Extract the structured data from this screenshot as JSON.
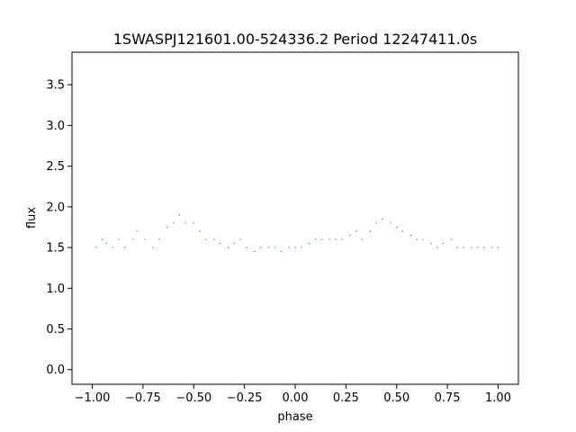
{
  "chart_data": {
    "type": "scatter",
    "title": "1SWASPJ121601.00-524336.2 Period 12247411.0s",
    "xlabel": "phase",
    "ylabel": "flux",
    "xlim": [
      -1.1,
      1.1
    ],
    "ylim": [
      -0.18,
      3.9
    ],
    "xticks": [
      -1.0,
      -0.75,
      -0.5,
      -0.25,
      0.0,
      0.25,
      0.5,
      0.75,
      1.0
    ],
    "xtick_labels": [
      "−1.00",
      "−0.75",
      "−0.50",
      "−0.25",
      "0.00",
      "0.25",
      "0.50",
      "0.75",
      "1.00"
    ],
    "yticks": [
      0.0,
      0.5,
      1.0,
      1.5,
      2.0,
      2.5,
      3.0,
      3.5
    ],
    "ytick_labels": [
      "0.0",
      "0.5",
      "1.0",
      "1.5",
      "2.0",
      "2.5",
      "3.0",
      "3.5"
    ],
    "grid": false,
    "point_color": "#1f77b4",
    "series": [
      {
        "x": [
          -0.98,
          -0.95,
          -0.93,
          -0.9,
          -0.87,
          -0.84,
          -0.8,
          -0.78,
          -0.74,
          -0.7,
          -0.67,
          -0.63,
          -0.6,
          -0.57,
          -0.54,
          -0.5,
          -0.47,
          -0.44,
          -0.4,
          -0.37,
          -0.33,
          -0.3,
          -0.27,
          -0.24,
          -0.2,
          -0.17,
          -0.13,
          -0.1,
          -0.07,
          -0.03,
          0.0,
          0.03,
          0.07,
          0.1,
          0.13,
          0.17,
          0.2,
          0.23,
          0.27,
          0.3,
          0.33,
          0.37,
          0.4,
          0.43,
          0.47,
          0.5,
          0.53,
          0.57,
          0.6,
          0.63,
          0.67,
          0.7,
          0.73,
          0.77,
          0.8,
          0.83,
          0.87,
          0.9,
          0.93,
          0.97,
          1.0
        ],
        "y": [
          1.5,
          1.6,
          1.55,
          1.5,
          1.6,
          1.5,
          1.6,
          1.7,
          1.6,
          1.5,
          1.6,
          1.75,
          1.8,
          1.9,
          1.8,
          1.8,
          1.7,
          1.6,
          1.6,
          1.55,
          1.5,
          1.55,
          1.6,
          1.5,
          1.45,
          1.5,
          1.5,
          1.5,
          1.45,
          1.5,
          1.5,
          1.5,
          1.55,
          1.6,
          1.6,
          1.6,
          1.6,
          1.6,
          1.65,
          1.7,
          1.6,
          1.7,
          1.8,
          1.85,
          1.8,
          1.75,
          1.7,
          1.65,
          1.6,
          1.6,
          1.55,
          1.5,
          1.55,
          1.6,
          1.5,
          1.5,
          1.5,
          1.5,
          1.5,
          1.5,
          1.5
        ]
      }
    ]
  }
}
